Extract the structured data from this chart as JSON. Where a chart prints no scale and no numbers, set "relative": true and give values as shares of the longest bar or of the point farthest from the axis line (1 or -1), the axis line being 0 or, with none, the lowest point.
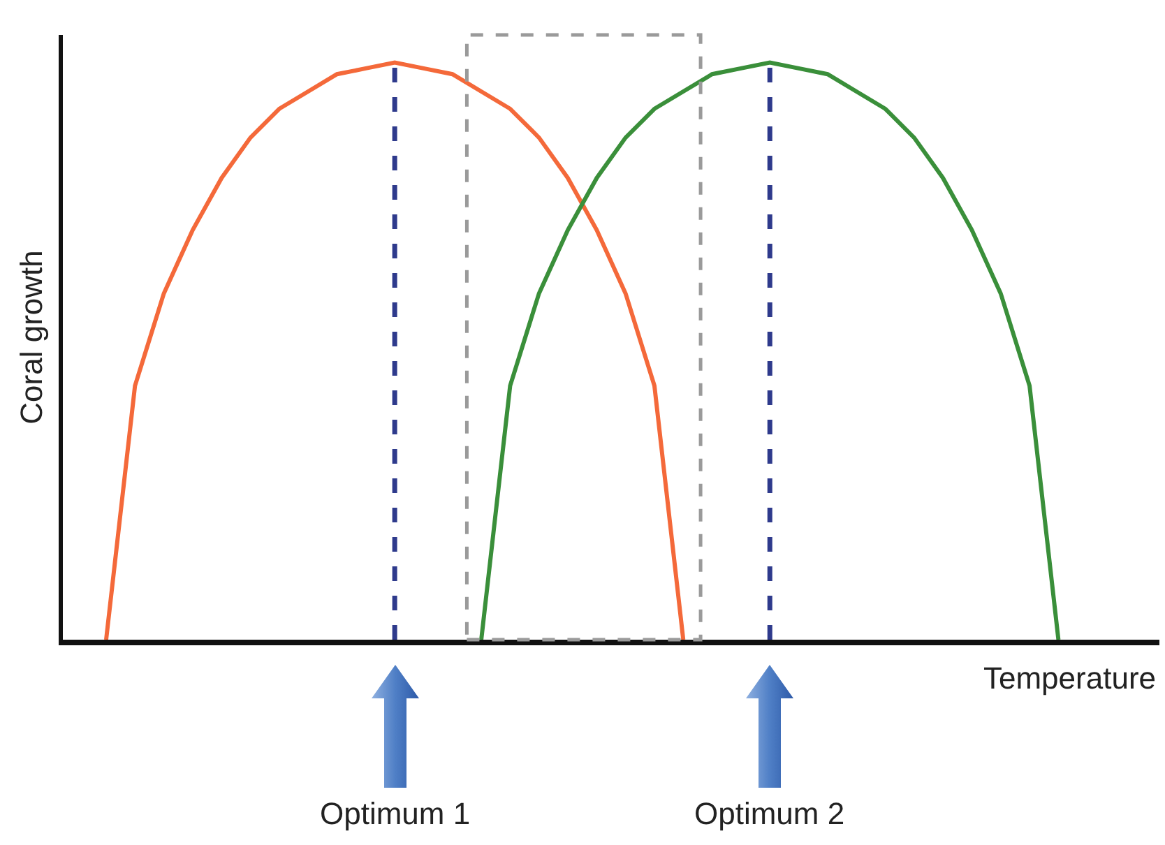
{
  "chart_data": {
    "type": "line",
    "relative": true,
    "ylabel": "Coral growth",
    "xlabel": "Temperature",
    "categories": [
      null,
      null,
      null,
      null,
      null,
      null,
      null,
      null,
      null,
      null,
      null,
      null,
      null,
      null,
      null,
      null,
      null,
      null,
      null,
      null,
      null,
      null,
      null,
      null,
      null,
      null,
      null,
      null,
      null,
      null,
      null,
      null,
      null,
      null,
      null,
      null,
      null,
      null
    ],
    "series": [
      {
        "color": "#f4693a",
        "values": [
          null,
          0,
          0.44,
          0.6,
          0.71,
          0.8,
          0.87,
          0.92,
          0.95,
          0.98,
          0.99,
          1,
          0.99,
          0.98,
          0.95,
          0.92,
          0.87,
          0.8,
          0.71,
          0.6,
          0.44,
          0,
          null,
          null,
          null,
          null,
          null,
          null,
          null,
          null,
          null,
          null,
          null,
          null,
          null,
          null,
          null,
          null
        ]
      },
      {
        "color": "#3a8f3a",
        "values": [
          null,
          null,
          null,
          null,
          null,
          null,
          null,
          null,
          null,
          null,
          null,
          null,
          null,
          null,
          0,
          0.44,
          0.6,
          0.71,
          0.8,
          0.87,
          0.92,
          0.95,
          0.98,
          0.99,
          1,
          0.99,
          0.98,
          0.95,
          0.92,
          0.87,
          0.8,
          0.71,
          0.6,
          0.44,
          0,
          null,
          null,
          null
        ]
      }
    ],
    "annotations": [
      "Optimum 1",
      "Optimum 2"
    ],
    "grid": false,
    "marker": "none",
    "line_style": "solid"
  }
}
